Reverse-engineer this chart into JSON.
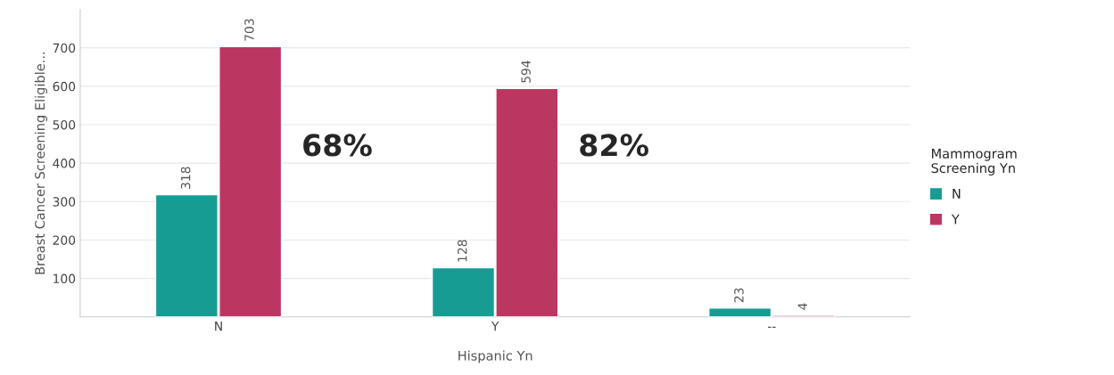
{
  "chart_data": {
    "type": "bar",
    "xlabel": "Hispanic Yn",
    "ylabel": "Breast Cancer Screening Eligible...",
    "legend_title": "Mammogram\nScreening Yn",
    "categories": [
      "N",
      "Y",
      "--"
    ],
    "series": [
      {
        "name": "N",
        "color": "#179c94",
        "values": [
          318,
          128,
          23
        ]
      },
      {
        "name": "Y",
        "color": "#bb3762",
        "values": [
          703,
          594,
          4
        ]
      }
    ],
    "ylim": [
      0,
      800
    ],
    "yticks": [
      100,
      200,
      300,
      400,
      500,
      600,
      700
    ],
    "grid": "y",
    "legend": "right",
    "data_labels": true,
    "annotations": [
      "68%",
      "82%"
    ]
  }
}
